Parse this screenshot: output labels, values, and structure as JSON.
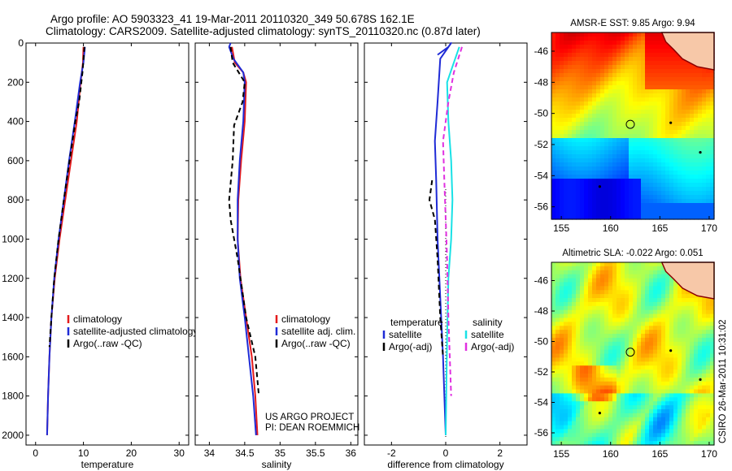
{
  "header": {
    "line1": "Argo profile: AO 5903323_41 19-Mar-2011 20110320_349 50.678S 162.1E",
    "line2": "Climatology: CARS2009. Satellite-adjusted climatology: synTS_20110320.nc (0.87d later)"
  },
  "footer": {
    "project": "US ARGO PROJECT",
    "pi": "PI: DEAN ROEMMICH",
    "stamp": "CSIRO 26-Mar-2011 10:31:02"
  },
  "colors": {
    "climatology": "#e41a1c",
    "satellite": "#1f2bd6",
    "argo": "#000000",
    "sat_cyan": "#19e1e6",
    "argo_magenta": "#e030e0",
    "land": "#f7c8a8",
    "land_edge": "#8b0000"
  },
  "chart_data": [
    {
      "id": "temperature",
      "type": "line",
      "xlabel": "temperature",
      "ylabel": "",
      "xlim": [
        -2,
        32
      ],
      "ylim": [
        2050,
        0
      ],
      "xticks": [
        0,
        10,
        20,
        30
      ],
      "yticks": [
        0,
        200,
        400,
        600,
        800,
        1000,
        1200,
        1400,
        1600,
        1800,
        2000
      ],
      "legend": [
        "climatology",
        "satellite-adjusted climatology",
        "Argo(..raw -QC)"
      ],
      "legend_loc": "lower-right",
      "series": [
        {
          "name": "climatology",
          "style": "solid",
          "color": "#e41a1c",
          "points": [
            [
              10,
              20
            ],
            [
              9.9,
              100
            ],
            [
              9.4,
              200
            ],
            [
              8.6,
              400
            ],
            [
              7.4,
              600
            ],
            [
              6.2,
              800
            ],
            [
              5.0,
              1000
            ],
            [
              4.0,
              1200
            ],
            [
              3.3,
              1400
            ],
            [
              2.9,
              1600
            ],
            [
              2.6,
              1800
            ],
            [
              2.4,
              2000
            ]
          ]
        },
        {
          "name": "satellite-adjusted climatology",
          "style": "solid",
          "color": "#1f2bd6",
          "points": [
            [
              10.3,
              20
            ],
            [
              10,
              100
            ],
            [
              9.3,
              200
            ],
            [
              8.2,
              400
            ],
            [
              7.0,
              600
            ],
            [
              5.9,
              800
            ],
            [
              4.8,
              1000
            ],
            [
              3.9,
              1200
            ],
            [
              3.3,
              1400
            ],
            [
              2.9,
              1600
            ],
            [
              2.6,
              1800
            ],
            [
              2.4,
              2000
            ]
          ]
        },
        {
          "name": "Argo(..raw -QC)",
          "style": "dash",
          "color": "#000000",
          "points": [
            [
              10.2,
              20
            ],
            [
              9.8,
              150
            ],
            [
              9.1,
              300
            ],
            [
              8.3,
              400
            ],
            [
              7.1,
              600
            ],
            [
              5.9,
              800
            ],
            [
              4.8,
              1000
            ],
            [
              3.9,
              1200
            ],
            [
              3.3,
              1400
            ],
            [
              2.9,
              1550
            ]
          ]
        }
      ]
    },
    {
      "id": "salinity",
      "type": "line",
      "xlabel": "salinity",
      "ylabel": "",
      "xlim": [
        33.8,
        36.1
      ],
      "ylim": [
        2050,
        0
      ],
      "xticks": [
        34,
        34.5,
        35,
        35.5,
        36
      ],
      "yticks": [],
      "legend": [
        "climatology",
        "satellite adj. clim.",
        "Argo(..raw -QC)"
      ],
      "legend_loc": "lower-right",
      "series": [
        {
          "name": "climatology",
          "style": "solid",
          "color": "#e41a1c",
          "points": [
            [
              34.32,
              20
            ],
            [
              34.36,
              100
            ],
            [
              34.48,
              150
            ],
            [
              34.52,
              200
            ],
            [
              34.5,
              400
            ],
            [
              34.45,
              600
            ],
            [
              34.41,
              800
            ],
            [
              34.4,
              1000
            ],
            [
              34.44,
              1200
            ],
            [
              34.52,
              1400
            ],
            [
              34.6,
              1600
            ],
            [
              34.65,
              1800
            ],
            [
              34.68,
              2000
            ]
          ]
        },
        {
          "name": "satellite adj. clim.",
          "style": "solid",
          "color": "#1f2bd6",
          "points": [
            [
              34.3,
              0
            ],
            [
              34.28,
              20
            ],
            [
              34.34,
              80
            ],
            [
              34.48,
              150
            ],
            [
              34.5,
              200
            ],
            [
              34.48,
              400
            ],
            [
              34.43,
              600
            ],
            [
              34.4,
              800
            ],
            [
              34.4,
              1000
            ],
            [
              34.43,
              1200
            ],
            [
              34.5,
              1400
            ],
            [
              34.56,
              1600
            ],
            [
              34.62,
              1800
            ],
            [
              34.66,
              2000
            ]
          ]
        },
        {
          "name": "Argo(..raw -QC)",
          "style": "dash",
          "color": "#000000",
          "points": [
            [
              34.3,
              20
            ],
            [
              34.33,
              100
            ],
            [
              34.5,
              200
            ],
            [
              34.47,
              300
            ],
            [
              34.35,
              420
            ],
            [
              34.33,
              600
            ],
            [
              34.28,
              800
            ],
            [
              34.3,
              900
            ],
            [
              34.4,
              1100
            ],
            [
              34.52,
              1400
            ],
            [
              34.65,
              1600
            ],
            [
              34.7,
              1800
            ]
          ]
        }
      ]
    },
    {
      "id": "difference",
      "type": "line",
      "xlabel": "difference from climatology",
      "ylabel": "",
      "xlim": [
        -3,
        3
      ],
      "ylim": [
        2050,
        0
      ],
      "xticks": [
        -2,
        0,
        2
      ],
      "yticks": [],
      "legend_groups": [
        {
          "title": "temperature",
          "entries": [
            "satellite",
            "Argo(-adj)"
          ]
        },
        {
          "title": "salinity",
          "entries": [
            "satellite",
            "Argo(-adj)"
          ]
        }
      ],
      "legend_loc": "lower-center",
      "series": [
        {
          "name": "temperature satellite",
          "style": "solid",
          "color": "#1f2bd6",
          "points": [
            [
              -0.3,
              60
            ],
            [
              0.1,
              20
            ],
            [
              0.2,
              0
            ],
            [
              -0.2,
              80
            ],
            [
              -0.3,
              300
            ],
            [
              -0.4,
              500
            ],
            [
              -0.35,
              700
            ],
            [
              -0.3,
              1000
            ],
            [
              -0.2,
              1300
            ],
            [
              -0.1,
              1600
            ],
            [
              0,
              2000
            ]
          ]
        },
        {
          "name": "temperature Argo(-adj)",
          "style": "dash",
          "color": "#000000",
          "points": [
            [
              -0.5,
              700
            ],
            [
              -0.6,
              800
            ],
            [
              -0.4,
              900
            ],
            [
              -0.3,
              1100
            ],
            [
              -0.2,
              1400
            ],
            [
              -0.1,
              1600
            ]
          ]
        },
        {
          "name": "salinity satellite",
          "style": "solid",
          "color": "#19e1e6",
          "points": [
            [
              0.5,
              20
            ],
            [
              0.3,
              100
            ],
            [
              0.05,
              200
            ],
            [
              0.1,
              400
            ],
            [
              0.2,
              600
            ],
            [
              0.25,
              800
            ],
            [
              0.2,
              1000
            ],
            [
              0.1,
              1200
            ],
            [
              0.05,
              1500
            ],
            [
              0,
              2000
            ]
          ]
        },
        {
          "name": "salinity Argo(-adj)",
          "style": "dash",
          "color": "#e030e0",
          "points": [
            [
              0.6,
              20
            ],
            [
              0.3,
              150
            ],
            [
              0.1,
              300
            ],
            [
              -0.1,
              500
            ],
            [
              -0.05,
              700
            ],
            [
              0,
              900
            ],
            [
              0.05,
              1100
            ],
            [
              0.1,
              1400
            ],
            [
              0.15,
              1600
            ],
            [
              0.2,
              1800
            ]
          ]
        }
      ]
    },
    {
      "id": "sst_map",
      "type": "heatmap",
      "title": "AMSR-E SST: 9.85  Argo: 9.94",
      "xlim": [
        154,
        170.5
      ],
      "ylim": [
        -56.8,
        -44.8
      ],
      "xticks": [
        155,
        160,
        165,
        170
      ],
      "yticks": [
        -46,
        -48,
        -50,
        -52,
        -54,
        -56
      ],
      "marker": [
        162,
        -50.7
      ],
      "colormap": "jet"
    },
    {
      "id": "sla_map",
      "type": "heatmap",
      "title": "Altimetric SLA: -0.022  Argo: 0.051",
      "xlim": [
        154,
        170.5
      ],
      "ylim": [
        -56.8,
        -44.8
      ],
      "xticks": [
        155,
        160,
        165,
        170
      ],
      "yticks": [
        -46,
        -48,
        -50,
        -52,
        -54,
        -56
      ],
      "marker": [
        162,
        -50.7
      ],
      "colormap": "jet"
    }
  ]
}
